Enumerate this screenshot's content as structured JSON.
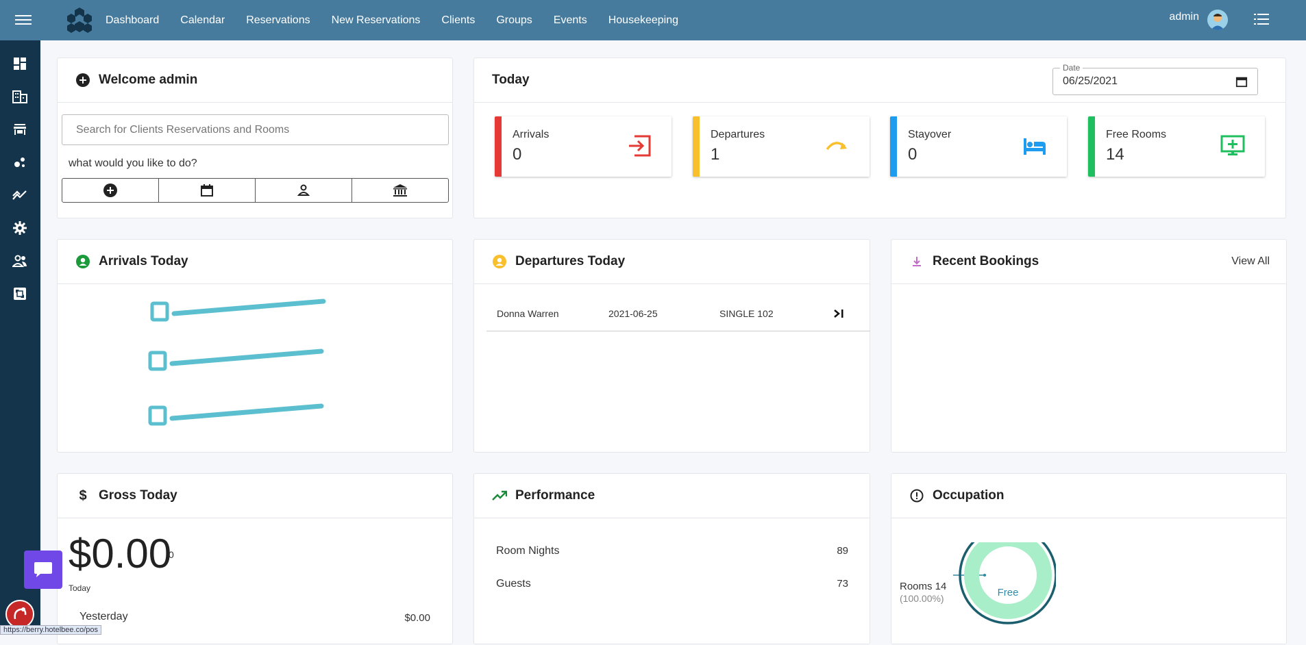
{
  "nav": {
    "items": [
      "Dashboard",
      "Calendar",
      "Reservations",
      "New Reservations",
      "Clients",
      "Groups",
      "Events",
      "Housekeeping"
    ],
    "user": "admin"
  },
  "welcome": {
    "title": "Welcome admin",
    "search_placeholder": "Search for Clients Reservations and Rooms",
    "prompt": "what would you like to do?"
  },
  "today": {
    "title": "Today",
    "date_label": "Date",
    "date_value": "06/25/2021",
    "stats": [
      {
        "label": "Arrivals",
        "value": "0",
        "color": "#e53935",
        "icon": "login-icon"
      },
      {
        "label": "Departures",
        "value": "1",
        "color": "#f9c02d",
        "icon": "redo-arrow-icon"
      },
      {
        "label": "Stayover",
        "value": "0",
        "color": "#1e9cf0",
        "icon": "bed-icon"
      },
      {
        "label": "Free Rooms",
        "value": "14",
        "color": "#1fbf5f",
        "icon": "add-screen-icon"
      }
    ]
  },
  "arrivals_today": {
    "title": "Arrivals Today"
  },
  "departures_today": {
    "title": "Departures Today",
    "rows": [
      {
        "name": "Donna Warren",
        "date": "2021-06-25",
        "room": "SINGLE 102"
      }
    ]
  },
  "recent_bookings": {
    "title": "Recent Bookings",
    "view_all": "View All"
  },
  "gross_today": {
    "title": "Gross Today",
    "amount": "$0.00",
    "amount_suffix": "0",
    "amount_caption": "Today",
    "yesterday_label": "Yesterday",
    "yesterday_value": "$0.00"
  },
  "performance": {
    "title": "Performance",
    "rows": [
      {
        "label": "Room Nights",
        "value": "89"
      },
      {
        "label": "Guests",
        "value": "73"
      }
    ]
  },
  "occupation": {
    "title": "Occupation",
    "legend_label": "Rooms 14",
    "legend_pct": "(100.00%)",
    "center_label": "Free"
  },
  "status_url": "https://berry.hotelbee.co/pos"
}
